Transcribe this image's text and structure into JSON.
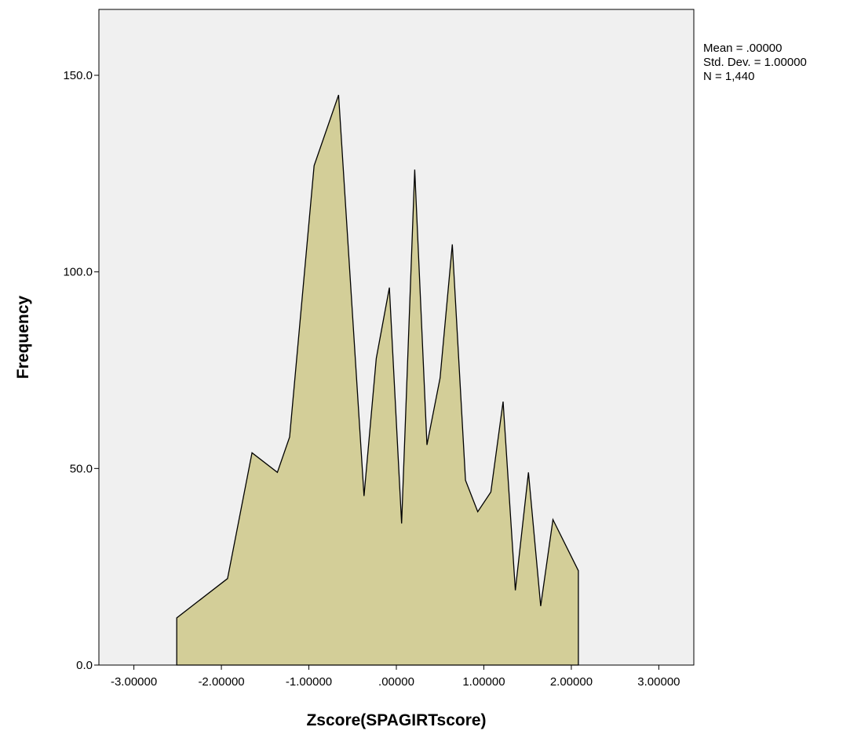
{
  "chart_data": {
    "type": "area",
    "xlabel": "Zscore(SPAGIRTscore)",
    "ylabel": "Frequency",
    "xlim": [
      -3.4,
      3.4
    ],
    "ylim": [
      0,
      150
    ],
    "x_ticks": [
      -3,
      -2,
      -1,
      0,
      1,
      2,
      3
    ],
    "x_tick_labels": [
      "-3.00000",
      "-2.00000",
      "-1.00000",
      ".00000",
      "1.00000",
      "2.00000",
      "3.00000"
    ],
    "y_ticks": [
      0,
      50,
      100,
      150
    ],
    "y_tick_labels": [
      "0.0",
      "50.0",
      "100.0",
      "150.0"
    ],
    "grid": false,
    "series": [
      {
        "x": [
          -2.51,
          -2.22,
          -1.93,
          -1.65,
          -1.36,
          -1.22,
          -0.94,
          -0.66,
          -0.37,
          -0.23,
          -0.08,
          0.06,
          0.21,
          0.35,
          0.5,
          0.64,
          0.79,
          0.93,
          1.08,
          1.22,
          1.36,
          1.51,
          1.65,
          1.79,
          2.08
        ],
        "values": [
          12,
          17,
          22,
          54,
          49,
          58,
          127,
          145,
          43,
          78,
          96,
          36,
          126,
          56,
          73,
          107,
          47,
          39,
          44,
          67,
          19,
          49,
          15,
          37,
          24
        ]
      }
    ],
    "colors": {
      "fill": "#d3ce98",
      "line": "#000000",
      "plot_bg": "#f0f0f0"
    },
    "stats_box": {
      "mean": "Mean = .00000",
      "std_dev": "Std. Dev. = 1.00000",
      "n": "N = 1,440"
    }
  }
}
